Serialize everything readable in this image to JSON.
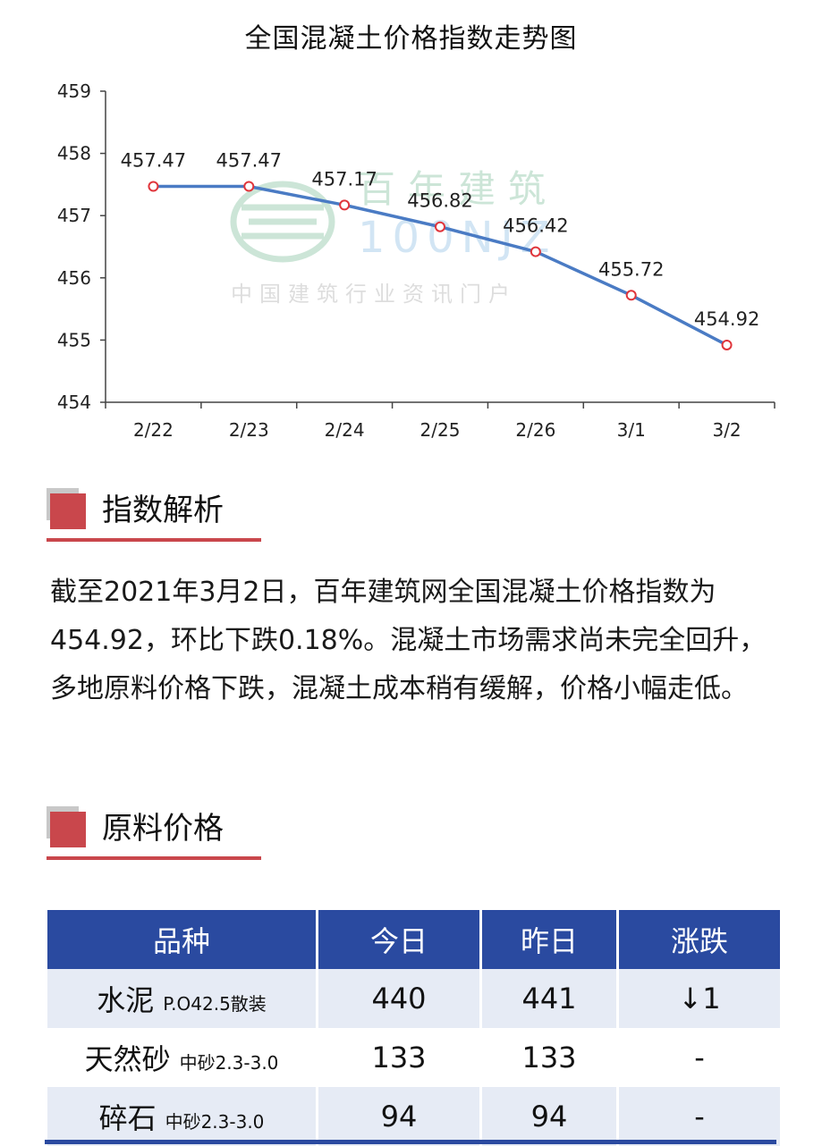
{
  "chart_data": {
    "type": "line",
    "title": "全国混凝土价格指数走势图",
    "categories": [
      "2/22",
      "2/23",
      "2/24",
      "2/25",
      "2/26",
      "3/1",
      "3/2"
    ],
    "series": [
      {
        "values": [
          457.47,
          457.47,
          457.17,
          456.82,
          456.42,
          455.72,
          454.92
        ]
      }
    ],
    "data_labels": [
      "457.47",
      "457.47",
      "457.17",
      "456.82",
      "456.42",
      "455.72",
      "454.92"
    ],
    "ylim": [
      454,
      459
    ],
    "yticks": [
      "454",
      "455",
      "456",
      "457",
      "458",
      "459"
    ],
    "grid": false,
    "line_color": "#4a7bc4",
    "marker_color": "#e0353b"
  },
  "watermark": {
    "brand": "百年建筑",
    "code": "100NJZ",
    "slogan": "中国建筑行业资讯门户"
  },
  "sections": {
    "analysis_title": "指数解析",
    "analysis_text": "截至2021年3月2日，百年建筑网全国混凝土价格指数为454.92，环比下跌0.18%。混凝土市场需求尚未完全回升，多地原料价格下跌，混凝土成本稍有缓解，价格小幅走低。",
    "materials_title": "原料价格"
  },
  "table": {
    "headers": [
      "品种",
      "今日",
      "昨日",
      "涨跌"
    ],
    "rows": [
      {
        "name": "水泥",
        "spec": "P.O42.5散装",
        "today": "440",
        "yesterday": "441",
        "change": "↓1"
      },
      {
        "name": "天然砂",
        "spec": "中砂2.3-3.0",
        "today": "133",
        "yesterday": "133",
        "change": "-"
      },
      {
        "name": "碎石",
        "spec": "中砂2.3-3.0",
        "today": "94",
        "yesterday": "94",
        "change": "-"
      }
    ]
  },
  "colors": {
    "accent_red": "#c9474c",
    "header_blue": "#2a4aa0",
    "row_shade": "#e6ebf5",
    "down_green": "#3a8a2a"
  }
}
